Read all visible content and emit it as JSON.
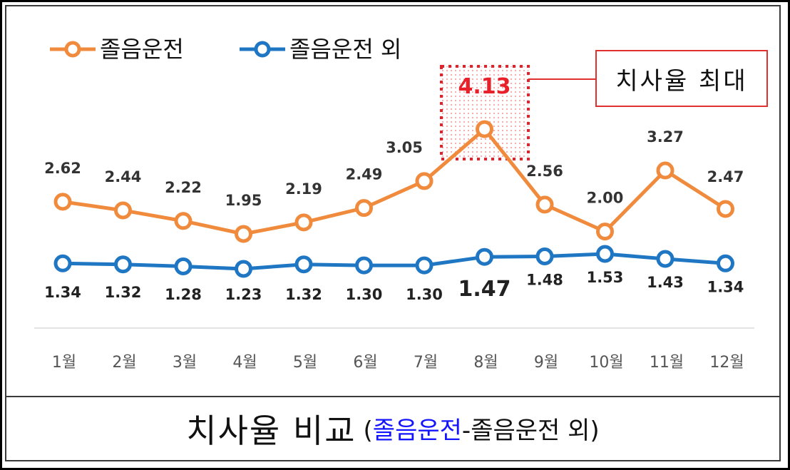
{
  "caption": {
    "main": "치사율 비교",
    "paren_open": "(",
    "blue": "졸음운전",
    "dash": "-",
    "rest": "졸음운전 외",
    "paren_close": ")"
  },
  "callout": {
    "label": "치사율 최대"
  },
  "colors": {
    "drowsy": "#f08a3c",
    "other": "#1f77c4",
    "highlight": "#e8202a"
  },
  "chart_data": {
    "type": "line",
    "categories": [
      "1월",
      "2월",
      "3월",
      "4월",
      "5월",
      "6월",
      "7월",
      "8월",
      "9월",
      "10월",
      "11월",
      "12월"
    ],
    "series": [
      {
        "name": "졸음운전",
        "values": [
          2.62,
          2.44,
          2.22,
          1.95,
          2.19,
          2.49,
          3.05,
          4.13,
          2.56,
          2.0,
          3.27,
          2.47
        ],
        "labels": [
          "2.62",
          "2.44",
          "2.22",
          "1.95",
          "2.19",
          "2.49",
          "3.05",
          "4.13",
          "2.56",
          "2.00",
          "3.27",
          "2.47"
        ]
      },
      {
        "name": "졸음운전 외",
        "values": [
          1.34,
          1.32,
          1.28,
          1.23,
          1.32,
          1.3,
          1.3,
          1.47,
          1.48,
          1.53,
          1.43,
          1.34
        ],
        "labels": [
          "1.34",
          "1.32",
          "1.28",
          "1.23",
          "1.32",
          "1.30",
          "1.30",
          "1.47",
          "1.48",
          "1.53",
          "1.43",
          "1.34"
        ]
      }
    ],
    "highlight_index": 7,
    "legend_position": "top-left",
    "grid": false
  }
}
